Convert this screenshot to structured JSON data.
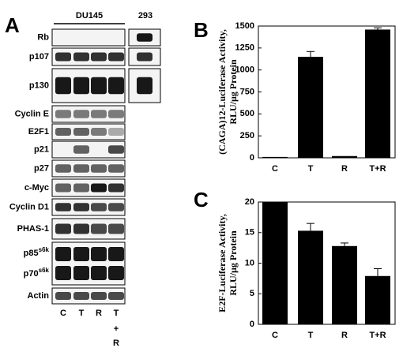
{
  "blots": {
    "panel": "A",
    "header": {
      "group": "DU145",
      "extra": "293"
    },
    "rows": [
      {
        "label": "Rb"
      },
      {
        "label": "p107"
      },
      {
        "label": "p130"
      },
      {
        "label": "Cyclin E"
      },
      {
        "label": "E2F1"
      },
      {
        "label": "p21"
      },
      {
        "label": "p27"
      },
      {
        "label": "c-Myc"
      },
      {
        "label": "Cyclin D1"
      },
      {
        "label": "PHAS-1"
      },
      {
        "labels": [
          {
            "text": "p85",
            "sup": "s6k"
          },
          {
            "text": "p70",
            "sup": "s6k"
          }
        ]
      },
      {
        "label": "Actin"
      }
    ],
    "lanes": [
      "C",
      "T",
      "R",
      "T"
    ],
    "lane_extra": [
      "+",
      "R"
    ]
  },
  "chart_data": [
    {
      "type": "bar",
      "panel": "B",
      "y_label": [
        "(CAGA)12-Luciferase Activity,",
        "RLU/µg Protein"
      ],
      "categories": [
        "C",
        "T",
        "R",
        "T+R"
      ],
      "series": [
        {
          "color": "#000000",
          "values": [
            10,
            1150,
            20,
            1460
          ],
          "errors": [
            null,
            60,
            null,
            20
          ]
        }
      ],
      "ylim": [
        0,
        1500
      ],
      "yticks": [
        0,
        250,
        500,
        750,
        1000,
        1250,
        1500
      ]
    },
    {
      "type": "bar",
      "panel": "C",
      "y_label": [
        "E2F-Luciferase Activity,",
        "RLU/µg Protein"
      ],
      "categories": [
        "C",
        "T",
        "R",
        "T+R"
      ],
      "series": [
        {
          "color": "#000000",
          "values": [
            20,
            15.3,
            12.8,
            7.9
          ],
          "errors": [
            null,
            1.2,
            0.5,
            1.2
          ]
        }
      ],
      "ylim": [
        0,
        20
      ],
      "yticks": [
        0,
        5,
        10,
        15,
        20
      ]
    }
  ]
}
